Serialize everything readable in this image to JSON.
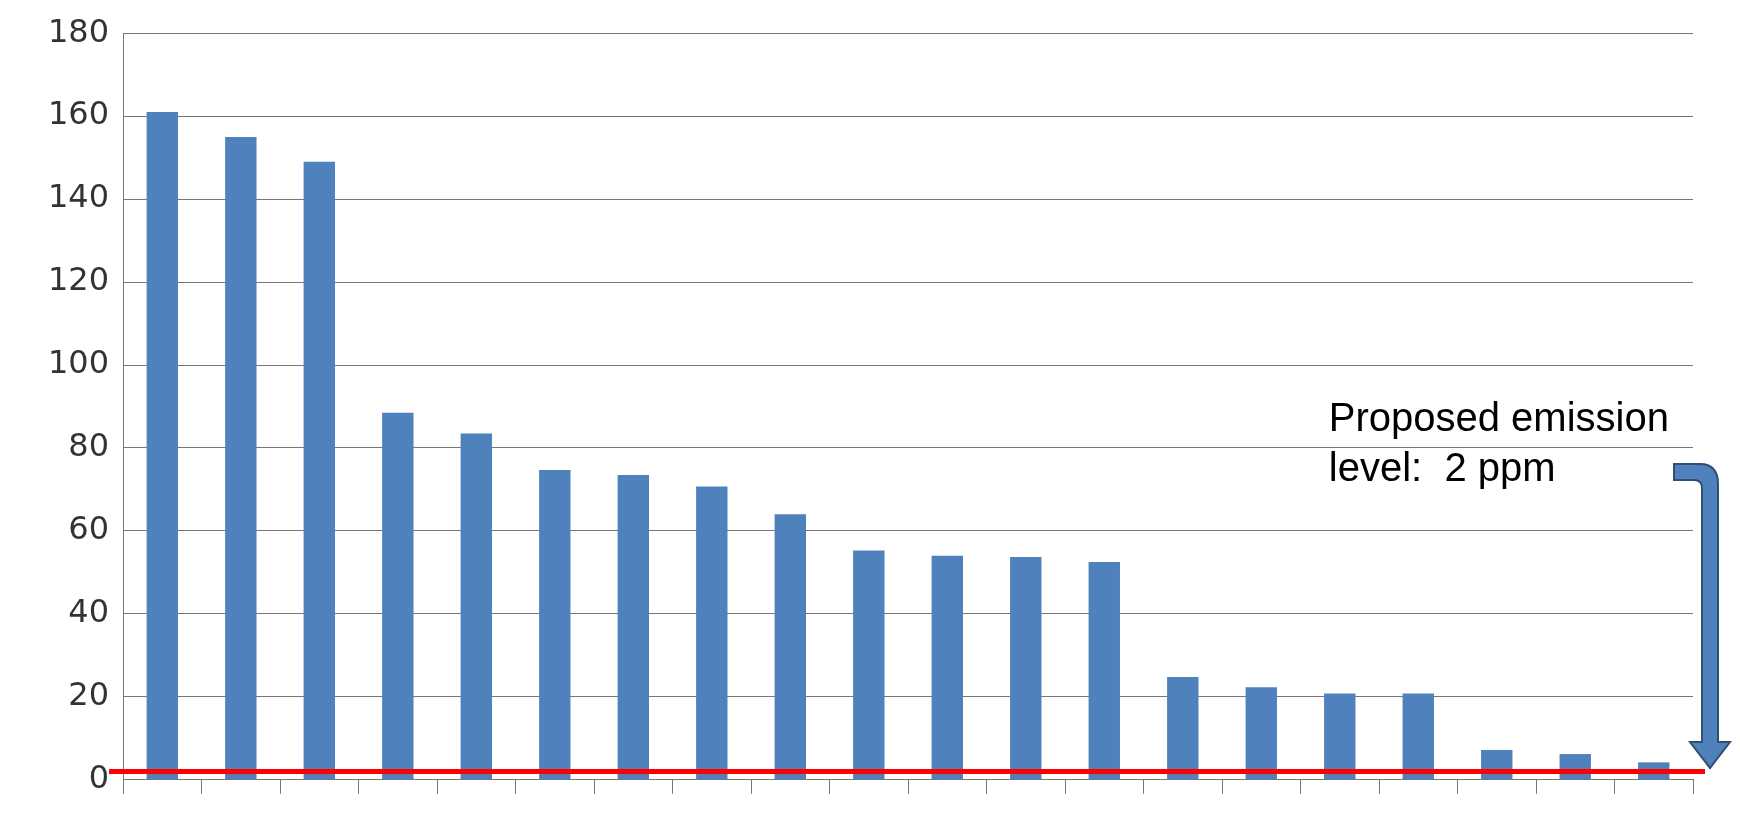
{
  "chart_data": {
    "type": "bar",
    "categories": [
      null,
      null,
      null,
      null,
      null,
      null,
      null,
      null,
      null,
      null,
      null,
      null,
      null,
      null,
      null,
      null,
      null,
      null,
      null,
      null
    ],
    "values": [
      161,
      155,
      149,
      88.5,
      83.5,
      74.7,
      73.5,
      70.7,
      64,
      55.3,
      54,
      53.7,
      52.5,
      24.8,
      22.3,
      20.8,
      20.8,
      7.2,
      6.2,
      4.2
    ],
    "color": "#4f81bd",
    "ylim": [
      0,
      180
    ],
    "yticks": [
      0,
      20,
      40,
      60,
      80,
      100,
      120,
      140,
      160,
      180
    ],
    "grid": "y",
    "legend": false,
    "tick_labels": "y",
    "ref_lines": [
      {
        "axis": "y",
        "value": 2,
        "color": "#ff0000"
      }
    ],
    "annotations": [
      "Proposed emission level:  2 ppm"
    ]
  }
}
